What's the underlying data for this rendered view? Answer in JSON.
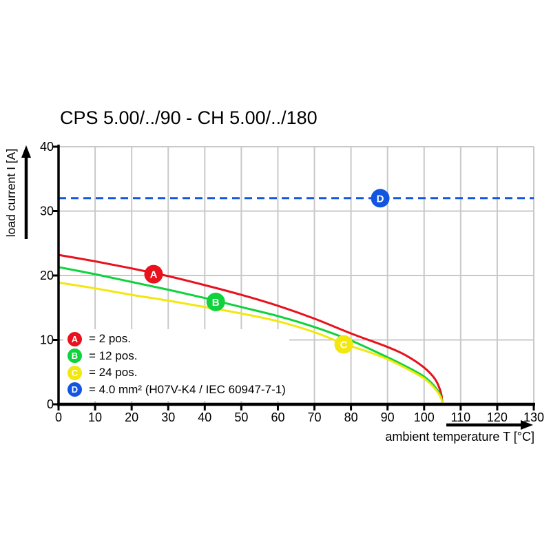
{
  "title": "CPS 5.00/../90 - CH 5.00/../180",
  "colors": {
    "red": "#e8111c",
    "green": "#10d23c",
    "yellow": "#f2e70e",
    "blue": "#1155e0",
    "grid": "#c9c9c9",
    "axis": "#000000",
    "background": "#ffffff"
  },
  "legend": {
    "items": [
      {
        "id": "A",
        "label": "= 2 pos.",
        "color": "#e8111c"
      },
      {
        "id": "B",
        "label": "= 12 pos.",
        "color": "#10d23c"
      },
      {
        "id": "C",
        "label": "= 24 pos.",
        "color": "#f2e70e"
      },
      {
        "id": "D",
        "label": "= 4.0 mm² (H07V-K4 / IEC 60947-7-1)",
        "color": "#1155e0"
      }
    ]
  },
  "chart_data": {
    "type": "line",
    "title": "CPS 5.00/../90 - CH 5.00/../180",
    "xlabel": "ambient temperature T [°C]",
    "ylabel": "load current I [A]",
    "xlim": [
      0,
      130
    ],
    "ylim": [
      0,
      40
    ],
    "x_ticks": [
      0,
      10,
      20,
      30,
      40,
      50,
      60,
      70,
      80,
      90,
      100,
      110,
      120,
      130
    ],
    "y_ticks": [
      0,
      10,
      20,
      30,
      40
    ],
    "grid": true,
    "legend_position": "inside-lower-left",
    "series": [
      {
        "id": "A",
        "name": "2 pos.",
        "color": "#e8111c",
        "line_style": "solid",
        "marker_at": [
          26,
          20.2
        ],
        "points": [
          [
            0,
            23.2
          ],
          [
            10,
            22.2
          ],
          [
            20,
            21.1
          ],
          [
            30,
            19.9
          ],
          [
            40,
            18.5
          ],
          [
            50,
            17.0
          ],
          [
            60,
            15.3
          ],
          [
            70,
            13.3
          ],
          [
            80,
            11.0
          ],
          [
            90,
            8.9
          ],
          [
            95,
            7.6
          ],
          [
            100,
            5.7
          ],
          [
            103,
            3.9
          ],
          [
            104.6,
            1.8
          ],
          [
            105,
            0
          ]
        ]
      },
      {
        "id": "B",
        "name": "12 pos.",
        "color": "#10d23c",
        "line_style": "solid",
        "marker_at": [
          43,
          15.9
        ],
        "points": [
          [
            0,
            21.3
          ],
          [
            10,
            20.2
          ],
          [
            20,
            19.0
          ],
          [
            30,
            17.8
          ],
          [
            40,
            16.5
          ],
          [
            50,
            15.1
          ],
          [
            60,
            13.7
          ],
          [
            70,
            12.0
          ],
          [
            80,
            9.9
          ],
          [
            90,
            7.3
          ],
          [
            95,
            5.9
          ],
          [
            100,
            4.3
          ],
          [
            103,
            2.7
          ],
          [
            104.6,
            1.2
          ],
          [
            105,
            0
          ]
        ]
      },
      {
        "id": "C",
        "name": "24 pos.",
        "color": "#f2e70e",
        "line_style": "solid",
        "marker_at": [
          78,
          9.3
        ],
        "points": [
          [
            0,
            18.9
          ],
          [
            10,
            18.0
          ],
          [
            20,
            17.0
          ],
          [
            30,
            16.1
          ],
          [
            40,
            15.1
          ],
          [
            50,
            14.1
          ],
          [
            60,
            12.9
          ],
          [
            70,
            11.2
          ],
          [
            78,
            9.4
          ],
          [
            85,
            8.1
          ],
          [
            90,
            7.0
          ],
          [
            95,
            5.6
          ],
          [
            100,
            4.0
          ],
          [
            103,
            2.4
          ],
          [
            104.6,
            1.0
          ],
          [
            105,
            0
          ]
        ]
      },
      {
        "id": "D",
        "name": "4.0 mm² (H07V-K4 / IEC 60947-7-1)",
        "color": "#1155e0",
        "line_style": "dashed",
        "marker_at": [
          88,
          32
        ],
        "points": [
          [
            0,
            32
          ],
          [
            130,
            32
          ]
        ]
      }
    ]
  }
}
